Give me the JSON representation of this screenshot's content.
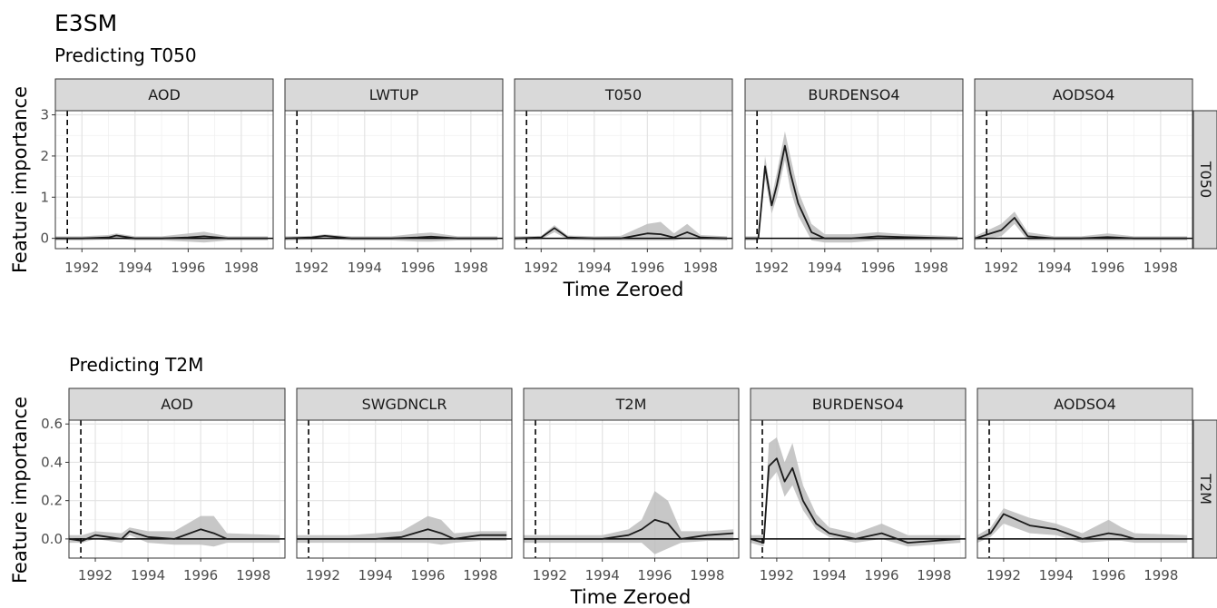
{
  "title": "E3SM",
  "chart_data": [
    {
      "type": "line",
      "title": "Predicting T050",
      "row_strip": "T050",
      "xlabel": "Time Zeroed",
      "ylabel": "Feature importance",
      "xlim": [
        1991.0,
        1999.2
      ],
      "ylim": [
        -0.25,
        3.1
      ],
      "xticks": [
        1992,
        1994,
        1996,
        1998
      ],
      "yticks": [
        0,
        1,
        2,
        3
      ],
      "event_line_x": 1991.45,
      "reference_line_y": 0,
      "grid": true,
      "band": "uncertainty range (grey ribbon)",
      "panels": [
        {
          "strip": "AOD",
          "x": [
            1991.0,
            1992.0,
            1993.0,
            1993.3,
            1994.0,
            1995.0,
            1996.0,
            1996.6,
            1997.5,
            1999.0
          ],
          "y": [
            0.0,
            0.0,
            0.02,
            0.07,
            0.0,
            0.0,
            0.02,
            0.05,
            0.0,
            0.0
          ],
          "lo": [
            -0.05,
            -0.05,
            -0.03,
            0.0,
            -0.05,
            -0.05,
            -0.08,
            -0.1,
            -0.05,
            -0.05
          ],
          "hi": [
            0.05,
            0.05,
            0.08,
            0.12,
            0.05,
            0.05,
            0.12,
            0.16,
            0.05,
            0.05
          ]
        },
        {
          "strip": "LWTUP",
          "x": [
            1991.0,
            1992.0,
            1992.5,
            1993.5,
            1995.0,
            1996.0,
            1996.5,
            1997.5,
            1999.0
          ],
          "y": [
            0.0,
            0.02,
            0.06,
            0.0,
            0.0,
            0.02,
            0.04,
            0.0,
            0.0
          ],
          "lo": [
            -0.05,
            -0.03,
            0.0,
            -0.05,
            -0.05,
            -0.08,
            -0.08,
            -0.05,
            -0.05
          ],
          "hi": [
            0.05,
            0.06,
            0.1,
            0.05,
            0.05,
            0.12,
            0.14,
            0.05,
            0.05
          ]
        },
        {
          "strip": "T050",
          "x": [
            1991.0,
            1992.0,
            1992.5,
            1993.0,
            1994.0,
            1995.0,
            1996.0,
            1996.5,
            1997.0,
            1997.5,
            1998.0,
            1999.0
          ],
          "y": [
            0.0,
            0.02,
            0.25,
            0.02,
            0.0,
            0.0,
            0.12,
            0.1,
            0.02,
            0.15,
            0.02,
            0.0
          ],
          "lo": [
            -0.05,
            -0.02,
            0.15,
            -0.03,
            -0.05,
            -0.05,
            -0.05,
            -0.05,
            -0.05,
            0.0,
            -0.03,
            -0.05
          ],
          "hi": [
            0.05,
            0.06,
            0.32,
            0.07,
            0.05,
            0.06,
            0.35,
            0.4,
            0.12,
            0.35,
            0.08,
            0.05
          ]
        },
        {
          "strip": "BURDENSO4",
          "x": [
            1991.0,
            1991.5,
            1991.75,
            1992.0,
            1992.2,
            1992.5,
            1992.7,
            1993.0,
            1993.5,
            1994.0,
            1995.0,
            1996.0,
            1997.0,
            1999.0
          ],
          "y": [
            0.0,
            0.0,
            1.75,
            0.8,
            1.3,
            2.25,
            1.6,
            0.85,
            0.15,
            0.0,
            0.0,
            0.05,
            0.03,
            0.0
          ],
          "lo": [
            -0.05,
            -0.05,
            1.45,
            0.6,
            1.0,
            1.9,
            1.2,
            0.55,
            -0.05,
            -0.1,
            -0.1,
            -0.05,
            -0.05,
            -0.05
          ],
          "hi": [
            0.05,
            0.05,
            2.0,
            1.0,
            1.6,
            2.6,
            2.0,
            1.15,
            0.35,
            0.1,
            0.1,
            0.15,
            0.1,
            0.05
          ]
        },
        {
          "strip": "AODSO4",
          "x": [
            1991.0,
            1991.5,
            1992.0,
            1992.5,
            1993.0,
            1994.0,
            1995.0,
            1996.0,
            1997.0,
            1999.0
          ],
          "y": [
            0.0,
            0.1,
            0.2,
            0.5,
            0.05,
            0.0,
            0.0,
            0.03,
            0.0,
            0.0
          ],
          "lo": [
            -0.05,
            0.0,
            0.05,
            0.35,
            -0.05,
            -0.05,
            -0.05,
            -0.05,
            -0.05,
            -0.05
          ],
          "hi": [
            0.05,
            0.2,
            0.35,
            0.65,
            0.15,
            0.05,
            0.05,
            0.12,
            0.05,
            0.05
          ]
        }
      ]
    },
    {
      "type": "line",
      "title": "Predicting T2M",
      "row_strip": "T2M",
      "xlabel": "Time Zeroed",
      "ylabel": "Feature importance",
      "xlim": [
        1991.0,
        1999.2
      ],
      "ylim": [
        -0.1,
        0.62
      ],
      "xticks": [
        1992,
        1994,
        1996,
        1998
      ],
      "yticks": [
        0.0,
        0.2,
        0.4,
        0.6
      ],
      "ytick_labels": [
        "0.0",
        "0.2",
        "0.4",
        "0.6"
      ],
      "event_line_x": 1991.45,
      "reference_line_y": 0,
      "grid": true,
      "band": "uncertainty range (grey ribbon)",
      "panels": [
        {
          "strip": "AOD",
          "x": [
            1991.0,
            1991.5,
            1992.0,
            1993.0,
            1993.3,
            1994.0,
            1995.0,
            1996.0,
            1996.5,
            1997.0,
            1999.0
          ],
          "y": [
            0.0,
            -0.01,
            0.02,
            0.0,
            0.04,
            0.01,
            0.0,
            0.05,
            0.03,
            0.0,
            0.0
          ],
          "lo": [
            -0.02,
            -0.02,
            0.0,
            -0.02,
            0.02,
            -0.02,
            -0.03,
            -0.03,
            -0.04,
            -0.02,
            -0.02
          ],
          "hi": [
            0.02,
            0.02,
            0.04,
            0.03,
            0.06,
            0.04,
            0.04,
            0.12,
            0.12,
            0.03,
            0.02
          ]
        },
        {
          "strip": "SWGDNCLR",
          "x": [
            1991.0,
            1992.0,
            1993.0,
            1994.0,
            1995.0,
            1996.0,
            1996.5,
            1997.0,
            1998.0,
            1999.0
          ],
          "y": [
            0.0,
            0.0,
            0.0,
            0.0,
            0.01,
            0.05,
            0.03,
            0.0,
            0.02,
            0.02
          ],
          "lo": [
            -0.02,
            -0.02,
            -0.02,
            -0.02,
            -0.02,
            -0.02,
            -0.03,
            -0.02,
            -0.01,
            -0.01
          ],
          "hi": [
            0.02,
            0.02,
            0.02,
            0.03,
            0.04,
            0.12,
            0.1,
            0.03,
            0.04,
            0.04
          ]
        },
        {
          "strip": "T2M",
          "x": [
            1991.0,
            1992.0,
            1994.0,
            1995.0,
            1995.5,
            1996.0,
            1996.5,
            1997.0,
            1998.0,
            1999.0
          ],
          "y": [
            0.0,
            0.0,
            0.0,
            0.02,
            0.05,
            0.1,
            0.08,
            0.0,
            0.02,
            0.03
          ],
          "lo": [
            -0.02,
            -0.02,
            -0.02,
            -0.02,
            -0.02,
            -0.08,
            -0.05,
            -0.02,
            -0.01,
            -0.01
          ],
          "hi": [
            0.02,
            0.02,
            0.02,
            0.05,
            0.1,
            0.25,
            0.2,
            0.04,
            0.04,
            0.05
          ]
        },
        {
          "strip": "BURDENSO4",
          "x": [
            1991.0,
            1991.5,
            1991.7,
            1992.0,
            1992.3,
            1992.6,
            1993.0,
            1993.5,
            1994.0,
            1995.0,
            1996.0,
            1997.0,
            1999.0
          ],
          "y": [
            0.0,
            -0.02,
            0.38,
            0.42,
            0.3,
            0.37,
            0.2,
            0.08,
            0.03,
            0.0,
            0.03,
            -0.02,
            0.0
          ],
          "lo": [
            -0.02,
            -0.04,
            0.3,
            0.35,
            0.22,
            0.28,
            0.15,
            0.05,
            0.01,
            -0.02,
            0.0,
            -0.04,
            -0.02
          ],
          "hi": [
            0.02,
            0.02,
            0.5,
            0.53,
            0.4,
            0.5,
            0.28,
            0.13,
            0.06,
            0.03,
            0.08,
            0.02,
            0.02
          ]
        },
        {
          "strip": "AODSO4",
          "x": [
            1991.0,
            1991.5,
            1992.0,
            1993.0,
            1994.0,
            1995.0,
            1996.0,
            1996.5,
            1997.0,
            1999.0
          ],
          "y": [
            0.0,
            0.03,
            0.13,
            0.07,
            0.05,
            0.0,
            0.03,
            0.02,
            0.0,
            0.0
          ],
          "lo": [
            -0.02,
            0.01,
            0.08,
            0.03,
            0.02,
            -0.02,
            -0.01,
            -0.01,
            -0.02,
            -0.02
          ],
          "hi": [
            0.02,
            0.06,
            0.16,
            0.11,
            0.08,
            0.03,
            0.1,
            0.06,
            0.03,
            0.02
          ]
        }
      ]
    }
  ]
}
